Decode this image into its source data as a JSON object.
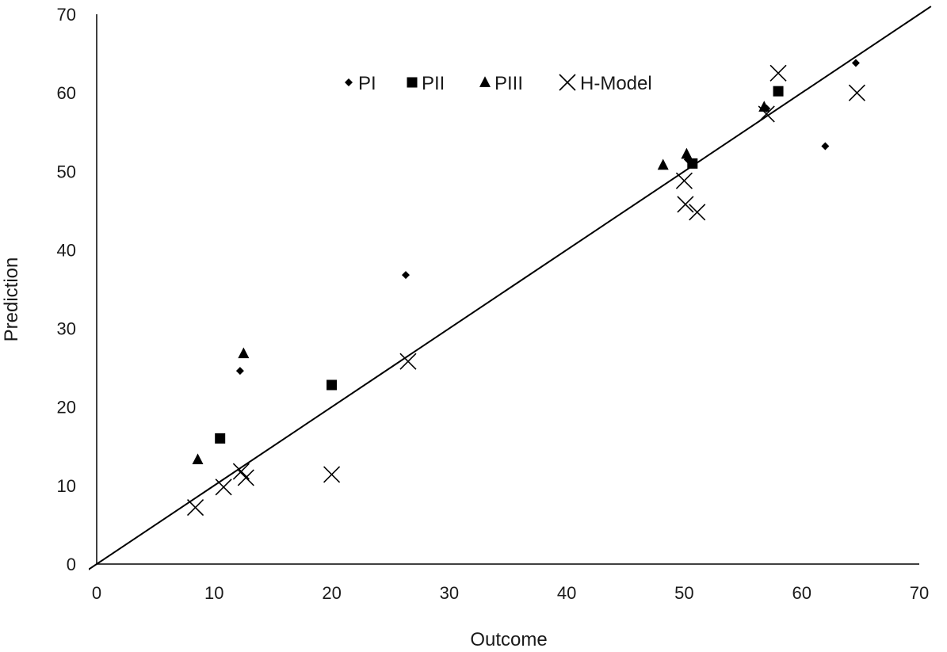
{
  "chart_data": {
    "type": "scatter",
    "title": "",
    "xlabel": "Outcome",
    "ylabel": "Prediction",
    "xlim": [
      0,
      70
    ],
    "ylim": [
      0,
      70
    ],
    "xticks": [
      0,
      10,
      20,
      30,
      40,
      50,
      60,
      70
    ],
    "yticks": [
      0,
      10,
      20,
      30,
      40,
      50,
      60,
      70
    ],
    "grid": false,
    "legend_position": "top",
    "trendline": {
      "x": [
        -1,
        71
      ],
      "y": [
        -1,
        71
      ],
      "color": "#000000"
    },
    "series": [
      {
        "name": "PI",
        "marker": "diamond",
        "color": "#000000",
        "points": [
          [
            12.2,
            24.6
          ],
          [
            26.3,
            36.8
          ],
          [
            50.3,
            51.5
          ],
          [
            57.0,
            58.0
          ],
          [
            62.0,
            53.2
          ],
          [
            64.6,
            63.8
          ]
        ]
      },
      {
        "name": "PII",
        "marker": "square",
        "color": "#000000",
        "points": [
          [
            10.5,
            16.0
          ],
          [
            20.0,
            22.8
          ],
          [
            50.7,
            51.0
          ],
          [
            58.0,
            60.2
          ]
        ]
      },
      {
        "name": "PIII",
        "marker": "triangle",
        "color": "#000000",
        "points": [
          [
            8.6,
            13.3
          ],
          [
            12.5,
            26.8
          ],
          [
            48.2,
            50.8
          ],
          [
            50.2,
            52.2
          ],
          [
            56.8,
            58.2
          ]
        ]
      },
      {
        "name": "H-Model",
        "marker": "x",
        "color": "#000000",
        "points": [
          [
            8.4,
            7.2
          ],
          [
            10.8,
            9.8
          ],
          [
            12.3,
            11.8
          ],
          [
            12.7,
            11.0
          ],
          [
            20.0,
            11.4
          ],
          [
            26.5,
            25.8
          ],
          [
            50.0,
            48.8
          ],
          [
            50.1,
            45.8
          ],
          [
            51.1,
            44.8
          ],
          [
            57.0,
            57.3
          ],
          [
            58.0,
            62.5
          ],
          [
            64.7,
            60.0
          ]
        ]
      }
    ]
  }
}
